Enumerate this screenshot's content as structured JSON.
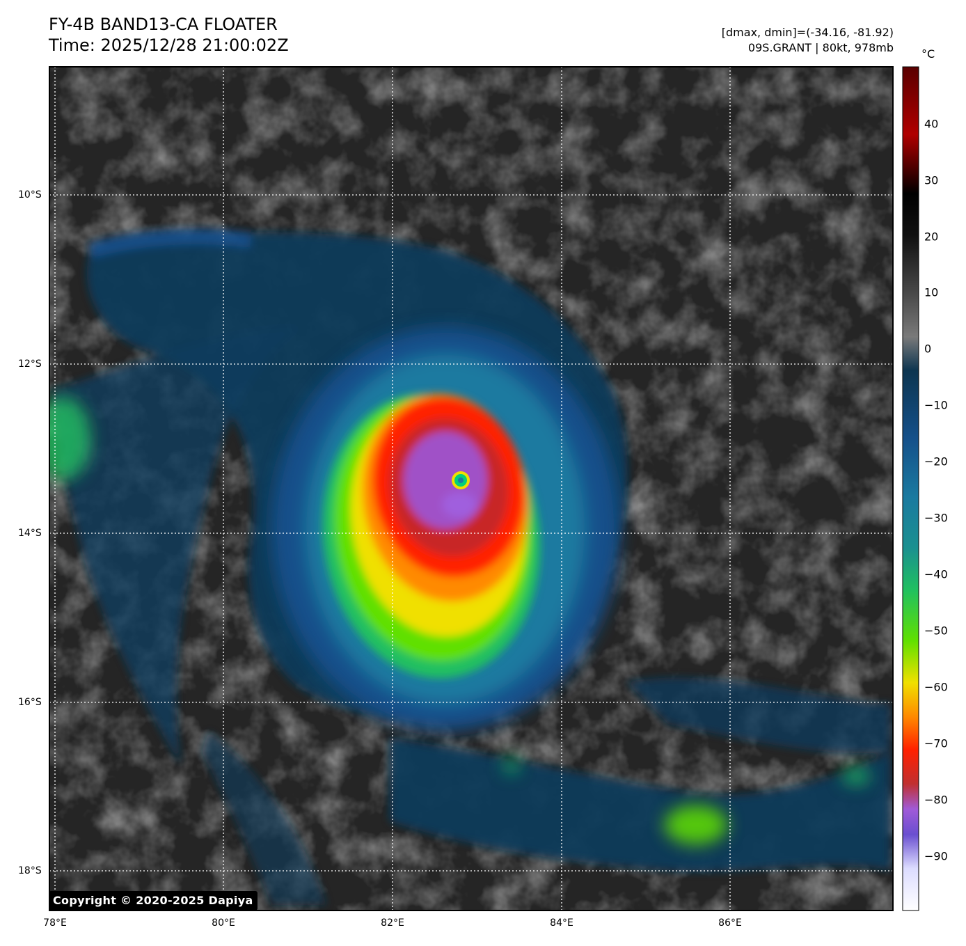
{
  "header": {
    "title_line1": "FY-4B BAND13-CA FLOATER",
    "title_line2": "Time: 2025/12/28 21:00:02Z",
    "range_text": "[dmax, dmin]=(-34.16, -81.92)",
    "storm_text": "09S.GRANT | 80kt, 978mb"
  },
  "map": {
    "lat_labels": [
      "10°S",
      "12°S",
      "14°S",
      "16°S",
      "18°S"
    ],
    "lon_labels": [
      "78°E",
      "80°E",
      "82°E",
      "84°E",
      "86°E"
    ],
    "grid_style": "dotted white",
    "storm_eye": {
      "lon": 82.8,
      "lat": -13.35
    }
  },
  "colorbar": {
    "unit": "°C",
    "ticks": [
      "40",
      "30",
      "20",
      "10",
      "0",
      "−10",
      "−20",
      "−30",
      "−40",
      "−50",
      "−60",
      "−70",
      "−80",
      "−90"
    ],
    "range": [
      -100,
      50
    ]
  },
  "colors": {
    "background_cloud": "#2a2a2a",
    "cold_top": "#ff1a00",
    "coldest": "#9b55d8",
    "eye": "#00d07a"
  },
  "copyright": "Copyright © 2020-2025 Dapiya"
}
